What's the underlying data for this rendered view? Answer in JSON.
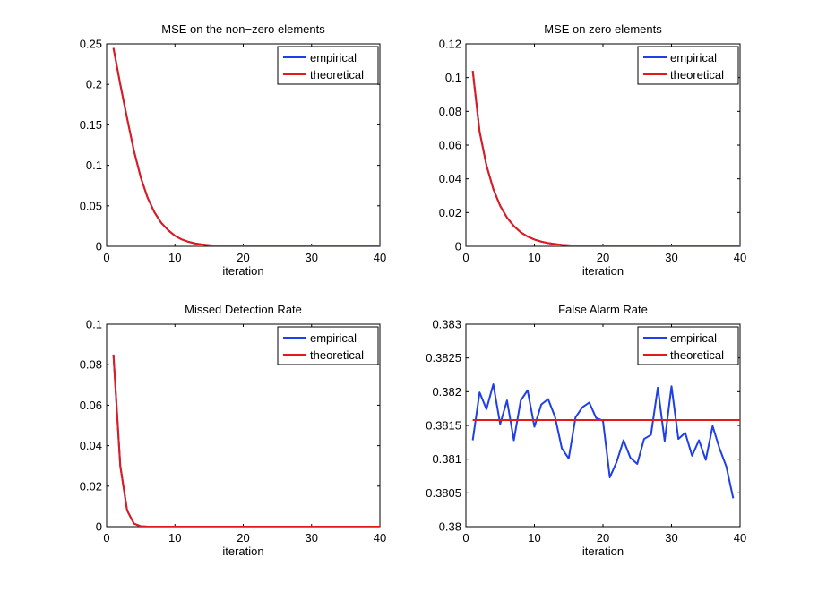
{
  "figure_title": "",
  "colors": {
    "empirical": "#1f3fe8",
    "theoretical": "#e21a1a",
    "axis": "#000000",
    "background": "#ffffff"
  },
  "chart_data": [
    {
      "type": "line",
      "title": "MSE on the non−zero elements",
      "xlabel": "iteration",
      "ylabel": "",
      "xlim": [
        0,
        40
      ],
      "ylim": [
        0,
        0.25
      ],
      "xticks": [
        0,
        10,
        20,
        30,
        40
      ],
      "xtick_labels": [
        "0",
        "10",
        "20",
        "30",
        "40"
      ],
      "yticks": [
        0,
        0.05,
        0.1,
        0.15,
        0.2,
        0.25
      ],
      "ytick_labels": [
        "0",
        "0.05",
        "0.1",
        "0.15",
        "0.2",
        "0.25"
      ],
      "legend": {
        "position": "top-right",
        "entries": [
          "empirical",
          "theoretical"
        ]
      },
      "series": [
        {
          "name": "empirical",
          "color": "#1f3fe8",
          "x": [
            1,
            2,
            3,
            4,
            5,
            6,
            7,
            8,
            9,
            10,
            11,
            12,
            13,
            14,
            15,
            16,
            17,
            18,
            19,
            20,
            21,
            22,
            23,
            24,
            25,
            26,
            27,
            28,
            29,
            30,
            31,
            32,
            33,
            34,
            35,
            36,
            37,
            38,
            39,
            40
          ],
          "y": [
            0.245,
            0.2,
            0.158,
            0.118,
            0.085,
            0.06,
            0.042,
            0.029,
            0.02,
            0.013,
            0.0085,
            0.0055,
            0.0035,
            0.0022,
            0.0014,
            0.0009,
            0.0006,
            0.0004,
            0.0002,
            0.0001,
            0,
            0,
            0,
            0,
            0,
            0,
            0,
            0,
            0,
            0,
            0,
            0,
            0,
            0,
            0,
            0,
            0,
            0,
            0,
            0
          ]
        },
        {
          "name": "theoretical",
          "color": "#e21a1a",
          "x": [
            1,
            2,
            3,
            4,
            5,
            6,
            7,
            8,
            9,
            10,
            11,
            12,
            13,
            14,
            15,
            16,
            17,
            18,
            19,
            20,
            21,
            22,
            23,
            24,
            25,
            26,
            27,
            28,
            29,
            30,
            31,
            32,
            33,
            34,
            35,
            36,
            37,
            38,
            39,
            40
          ],
          "y": [
            0.245,
            0.2,
            0.158,
            0.118,
            0.085,
            0.06,
            0.042,
            0.029,
            0.02,
            0.013,
            0.0085,
            0.0055,
            0.0035,
            0.0022,
            0.0014,
            0.0009,
            0.0006,
            0.0004,
            0.0002,
            0.0001,
            0,
            0,
            0,
            0,
            0,
            0,
            0,
            0,
            0,
            0,
            0,
            0,
            0,
            0,
            0,
            0,
            0,
            0,
            0,
            0
          ]
        }
      ]
    },
    {
      "type": "line",
      "title": "MSE on zero elements",
      "xlabel": "iteration",
      "ylabel": "",
      "xlim": [
        0,
        40
      ],
      "ylim": [
        0,
        0.12
      ],
      "xticks": [
        0,
        10,
        20,
        30,
        40
      ],
      "xtick_labels": [
        "0",
        "10",
        "20",
        "30",
        "40"
      ],
      "yticks": [
        0,
        0.02,
        0.04,
        0.06,
        0.08,
        0.1,
        0.12
      ],
      "ytick_labels": [
        "0",
        "0.02",
        "0.04",
        "0.06",
        "0.08",
        "0.1",
        "0.12"
      ],
      "legend": {
        "position": "top-right",
        "entries": [
          "empirical",
          "theoretical"
        ]
      },
      "series": [
        {
          "name": "empirical",
          "color": "#1f3fe8",
          "x": [
            1,
            2,
            3,
            4,
            5,
            6,
            7,
            8,
            9,
            10,
            11,
            12,
            13,
            14,
            15,
            16,
            17,
            18,
            19,
            20,
            21,
            22,
            23,
            24,
            25,
            26,
            27,
            28,
            29,
            30,
            31,
            32,
            33,
            34,
            35,
            36,
            37,
            38,
            39,
            40
          ],
          "y": [
            0.104,
            0.068,
            0.048,
            0.034,
            0.024,
            0.017,
            0.012,
            0.0083,
            0.0058,
            0.004,
            0.0028,
            0.0019,
            0.0013,
            0.0009,
            0.0006,
            0.0004,
            0.0003,
            0.0002,
            0.0001,
            0.0001,
            0,
            0,
            0,
            0,
            0,
            0,
            0,
            0,
            0,
            0,
            0,
            0,
            0,
            0,
            0,
            0,
            0,
            0,
            0,
            0
          ]
        },
        {
          "name": "theoretical",
          "color": "#e21a1a",
          "x": [
            1,
            2,
            3,
            4,
            5,
            6,
            7,
            8,
            9,
            10,
            11,
            12,
            13,
            14,
            15,
            16,
            17,
            18,
            19,
            20,
            21,
            22,
            23,
            24,
            25,
            26,
            27,
            28,
            29,
            30,
            31,
            32,
            33,
            34,
            35,
            36,
            37,
            38,
            39,
            40
          ],
          "y": [
            0.104,
            0.068,
            0.048,
            0.034,
            0.024,
            0.017,
            0.012,
            0.0083,
            0.0058,
            0.004,
            0.0028,
            0.0019,
            0.0013,
            0.0009,
            0.0006,
            0.0004,
            0.0003,
            0.0002,
            0.0001,
            0.0001,
            0,
            0,
            0,
            0,
            0,
            0,
            0,
            0,
            0,
            0,
            0,
            0,
            0,
            0,
            0,
            0,
            0,
            0,
            0,
            0
          ]
        }
      ]
    },
    {
      "type": "line",
      "title": "Missed Detection Rate",
      "xlabel": "iteration",
      "ylabel": "",
      "xlim": [
        0,
        40
      ],
      "ylim": [
        0,
        0.1
      ],
      "xticks": [
        0,
        10,
        20,
        30,
        40
      ],
      "xtick_labels": [
        "0",
        "10",
        "20",
        "30",
        "40"
      ],
      "yticks": [
        0,
        0.02,
        0.04,
        0.06,
        0.08,
        0.1
      ],
      "ytick_labels": [
        "0",
        "0.02",
        "0.04",
        "0.06",
        "0.08",
        "0.1"
      ],
      "legend": {
        "position": "top-right",
        "entries": [
          "empirical",
          "theoretical"
        ]
      },
      "series": [
        {
          "name": "empirical",
          "color": "#1f3fe8",
          "x": [
            1,
            2,
            3,
            4,
            5,
            6,
            7,
            8,
            9,
            10,
            11,
            12,
            13,
            14,
            15,
            16,
            17,
            18,
            19,
            20,
            21,
            22,
            23,
            24,
            25,
            26,
            27,
            28,
            29,
            30,
            31,
            32,
            33,
            34,
            35,
            36,
            37,
            38,
            39,
            40
          ],
          "y": [
            0.085,
            0.03,
            0.008,
            0.0015,
            0.0002,
            0,
            0,
            0,
            0,
            0,
            0,
            0,
            0,
            0,
            0,
            0,
            0,
            0,
            0,
            0,
            0,
            0,
            0,
            0,
            0,
            0,
            0,
            0,
            0,
            0,
            0,
            0,
            0,
            0,
            0,
            0,
            0,
            0,
            0,
            0
          ]
        },
        {
          "name": "theoretical",
          "color": "#e21a1a",
          "x": [
            1,
            2,
            3,
            4,
            5,
            6,
            7,
            8,
            9,
            10,
            11,
            12,
            13,
            14,
            15,
            16,
            17,
            18,
            19,
            20,
            21,
            22,
            23,
            24,
            25,
            26,
            27,
            28,
            29,
            30,
            31,
            32,
            33,
            34,
            35,
            36,
            37,
            38,
            39,
            40
          ],
          "y": [
            0.085,
            0.03,
            0.008,
            0.0015,
            0.0002,
            0,
            0,
            0,
            0,
            0,
            0,
            0,
            0,
            0,
            0,
            0,
            0,
            0,
            0,
            0,
            0,
            0,
            0,
            0,
            0,
            0,
            0,
            0,
            0,
            0,
            0,
            0,
            0,
            0,
            0,
            0,
            0,
            0,
            0,
            0
          ]
        }
      ]
    },
    {
      "type": "line",
      "title": "False Alarm Rate",
      "xlabel": "iteration",
      "ylabel": "",
      "xlim": [
        0,
        40
      ],
      "ylim": [
        0.38,
        0.383
      ],
      "xticks": [
        0,
        10,
        20,
        30,
        40
      ],
      "xtick_labels": [
        "0",
        "10",
        "20",
        "30",
        "40"
      ],
      "yticks": [
        0.38,
        0.3805,
        0.381,
        0.3815,
        0.382,
        0.3825,
        0.383
      ],
      "ytick_labels": [
        "0.38",
        "0.3805",
        "0.381",
        "0.3815",
        "0.382",
        "0.3825",
        "0.383"
      ],
      "legend": {
        "position": "top-right",
        "entries": [
          "empirical",
          "theoretical"
        ]
      },
      "series": [
        {
          "name": "empirical",
          "color": "#1f3fe8",
          "x": [
            1,
            2,
            3,
            4,
            5,
            6,
            7,
            8,
            9,
            10,
            11,
            12,
            13,
            14,
            15,
            16,
            17,
            18,
            19,
            20,
            21,
            22,
            23,
            24,
            25,
            26,
            27,
            28,
            29,
            30,
            31,
            32,
            33,
            34,
            35,
            36,
            37,
            38,
            39
          ],
          "y": [
            0.38128,
            0.38199,
            0.38174,
            0.38211,
            0.38152,
            0.38187,
            0.38128,
            0.38187,
            0.38202,
            0.38148,
            0.38181,
            0.38189,
            0.38163,
            0.38116,
            0.38101,
            0.38162,
            0.38177,
            0.38184,
            0.38161,
            0.38157,
            0.38073,
            0.38096,
            0.38128,
            0.38102,
            0.38093,
            0.3813,
            0.38136,
            0.38206,
            0.38127,
            0.38208,
            0.3813,
            0.38139,
            0.38105,
            0.38128,
            0.38099,
            0.38149,
            0.38116,
            0.38089,
            0.38042
          ]
        },
        {
          "name": "theoretical",
          "color": "#e21a1a",
          "x": [
            1,
            40
          ],
          "y": [
            0.38158,
            0.38158
          ]
        }
      ]
    }
  ]
}
